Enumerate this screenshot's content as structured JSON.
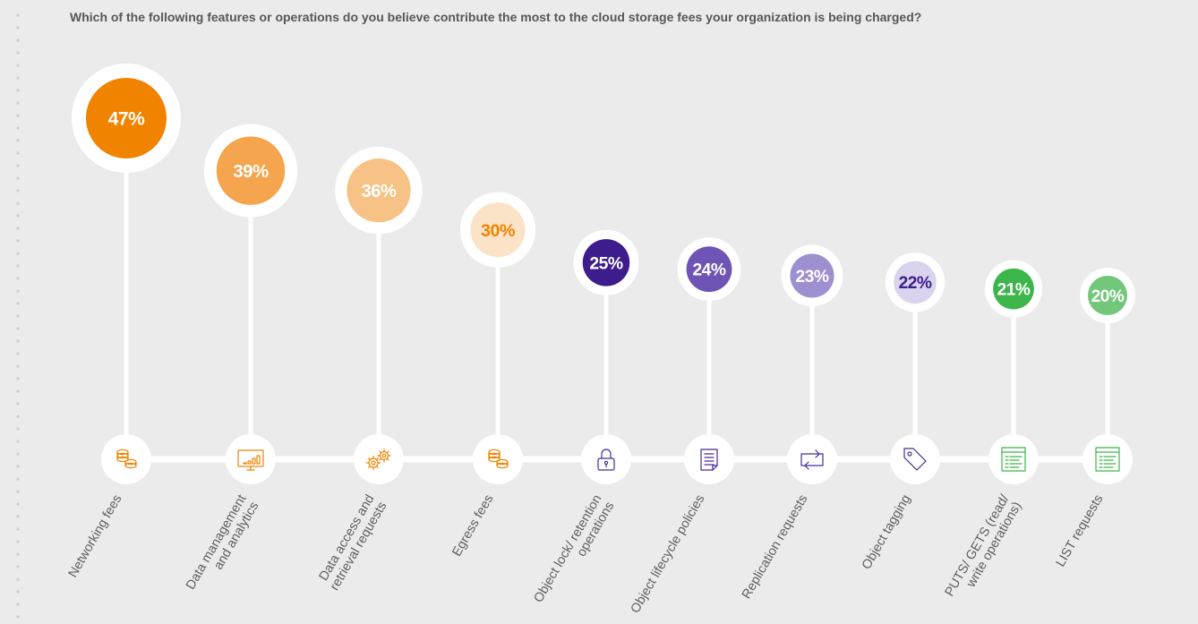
{
  "question": "Which of the following features or operations do you believe contribute the most to the cloud storage fees your organization is being charged?",
  "chart_data": {
    "type": "bubble-lollipop",
    "unit": "%",
    "categories": [
      {
        "label_lines": [
          "Networking fees"
        ],
        "value": 47,
        "value_label": "47%",
        "color": "#f08300",
        "text_color": "#ffffff",
        "icon": "coins-icon",
        "icon_color": "#f08300"
      },
      {
        "label_lines": [
          "Data management",
          "and analytics"
        ],
        "value": 39,
        "value_label": "39%",
        "color": "#f4a54e",
        "text_color": "#ffffff",
        "icon": "monitor-chart-icon",
        "icon_color": "#f08300"
      },
      {
        "label_lines": [
          "Data access and",
          "retrieval requests"
        ],
        "value": 36,
        "value_label": "36%",
        "color": "#f7c285",
        "text_color": "#ffffff",
        "icon": "gears-icon",
        "icon_color": "#f08300"
      },
      {
        "label_lines": [
          "Egress fees"
        ],
        "value": 30,
        "value_label": "30%",
        "color": "#fbe3c7",
        "text_color": "#f08300",
        "icon": "coins-icon",
        "icon_color": "#f08300"
      },
      {
        "label_lines": [
          "Object lock/ retention",
          "operations"
        ],
        "value": 25,
        "value_label": "25%",
        "color": "#3d1c8c",
        "text_color": "#ffffff",
        "icon": "lock-icon",
        "icon_color": "#4b2a96"
      },
      {
        "label_lines": [
          "Object lifecycle policies"
        ],
        "value": 24,
        "value_label": "24%",
        "color": "#6e54b5",
        "text_color": "#ffffff",
        "icon": "document-icon",
        "icon_color": "#4b2a96"
      },
      {
        "label_lines": [
          "Replication requests"
        ],
        "value": 23,
        "value_label": "23%",
        "color": "#9e8fd0",
        "text_color": "#ffffff",
        "icon": "replicate-arrows-icon",
        "icon_color": "#4b2a96"
      },
      {
        "label_lines": [
          "Object tagging"
        ],
        "value": 22,
        "value_label": "22%",
        "color": "#d9d3ee",
        "text_color": "#3d1c8c",
        "icon": "tag-icon",
        "icon_color": "#4b2a96"
      },
      {
        "label_lines": [
          "PUTS/ GETS (read/",
          "write operations)"
        ],
        "value": 21,
        "value_label": "21%",
        "color": "#3cb54a",
        "text_color": "#ffffff",
        "icon": "list-window-icon",
        "icon_color": "#3cb54a"
      },
      {
        "label_lines": [
          "LIST requests"
        ],
        "value": 20,
        "value_label": "20%",
        "color": "#72c77a",
        "text_color": "#ffffff",
        "icon": "list-window-icon",
        "icon_color": "#3cb54a"
      }
    ]
  }
}
